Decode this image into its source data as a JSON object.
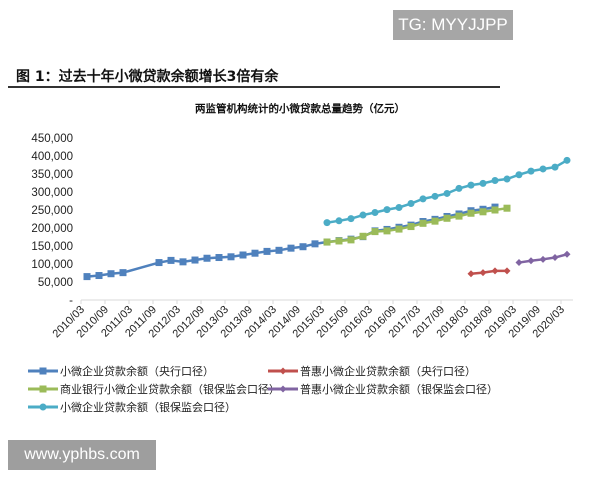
{
  "watermark": "TG: MYYJJPP",
  "figure_title": "图 1：过去十年小微贷款余额增长3倍有余",
  "site_watermark": "www.yphbs.com",
  "chart_data": {
    "type": "line",
    "title": "两监管机构统计的小微贷款总量趋势（亿元）",
    "xlabel": "",
    "ylabel": "",
    "ylim": [
      0,
      450000
    ],
    "yticks": [
      "-",
      "50,000",
      "100,000",
      "150,000",
      "200,000",
      "250,000",
      "300,000",
      "350,000",
      "400,000",
      "450,000"
    ],
    "ytick_values": [
      0,
      50000,
      100000,
      150000,
      200000,
      250000,
      300000,
      350000,
      400000,
      450000
    ],
    "categories": [
      "2010/03",
      "2010/09",
      "2011/03",
      "2011/09",
      "2012/03",
      "2012/09",
      "2013/03",
      "2013/09",
      "2014/03",
      "2014/09",
      "2015/03",
      "2015/09",
      "2016/03",
      "2016/09",
      "2017/03",
      "2017/09",
      "2018/03",
      "2018/09",
      "2019/03",
      "2019/09",
      "2020/03"
    ],
    "grid": false,
    "legend": "bottom",
    "series": [
      {
        "name": "小微企业贷款余额（央行口径）",
        "color": "#4f81bd",
        "marker": "square",
        "x": [
          "2010/03",
          "2010/06",
          "2010/09",
          "2010/12",
          "2011/09",
          "2011/12",
          "2012/03",
          "2012/06",
          "2012/09",
          "2012/12",
          "2013/03",
          "2013/06",
          "2013/09",
          "2013/12",
          "2014/03",
          "2014/06",
          "2014/09",
          "2014/12",
          "2015/03",
          "2015/06",
          "2015/09",
          "2015/12",
          "2016/03",
          "2016/06",
          "2016/09",
          "2016/12",
          "2017/03",
          "2017/06",
          "2017/09",
          "2017/12",
          "2018/03",
          "2018/06",
          "2018/09"
        ],
        "values": [
          65000,
          68000,
          73000,
          76000,
          104000,
          110000,
          106000,
          111000,
          116000,
          118000,
          120000,
          125000,
          130000,
          135000,
          138000,
          144000,
          148000,
          156000,
          161000,
          165000,
          169000,
          176000,
          192000,
          196000,
          202000,
          208000,
          218000,
          224000,
          232000,
          239000,
          248000,
          252000,
          258000
        ]
      },
      {
        "name": "普惠小微企业贷款余额（央行口径）",
        "color": "#c0504d",
        "marker": "diamond",
        "x": [
          "2018/03",
          "2018/06",
          "2018/09",
          "2018/12"
        ],
        "values": [
          73000,
          76000,
          81000,
          81000
        ]
      },
      {
        "name": "商业银行小微企业贷款余额（银保监会口径）",
        "color": "#9bbb59",
        "marker": "square",
        "x": [
          "2015/03",
          "2015/06",
          "2015/09",
          "2015/12",
          "2016/03",
          "2016/06",
          "2016/09",
          "2016/12",
          "2017/03",
          "2017/06",
          "2017/09",
          "2017/12",
          "2018/03",
          "2018/06",
          "2018/09",
          "2018/12"
        ],
        "values": [
          161000,
          164000,
          167000,
          177000,
          190000,
          192000,
          197000,
          204000,
          213000,
          219000,
          227000,
          233000,
          241000,
          245000,
          250000,
          255000
        ]
      },
      {
        "name": "普惠小微企业贷款余额（银保监会口径）",
        "color": "#8064a2",
        "marker": "diamond",
        "x": [
          "2019/03",
          "2019/06",
          "2019/09",
          "2019/12",
          "2020/03"
        ],
        "values": [
          104000,
          109000,
          113000,
          118000,
          127000
        ]
      },
      {
        "name": "小微企业贷款余额（银保监会口径）",
        "color": "#4bacc6",
        "marker": "circle",
        "x": [
          "2015/03",
          "2015/06",
          "2015/09",
          "2015/12",
          "2016/03",
          "2016/06",
          "2016/09",
          "2016/12",
          "2017/03",
          "2017/06",
          "2017/09",
          "2017/12",
          "2018/03",
          "2018/06",
          "2018/09",
          "2018/12",
          "2019/03",
          "2019/06",
          "2019/09",
          "2019/12",
          "2020/03"
        ],
        "values": [
          215000,
          220000,
          226000,
          236000,
          243000,
          251000,
          257000,
          268000,
          281000,
          288000,
          296000,
          310000,
          319000,
          324000,
          332000,
          336000,
          348000,
          358000,
          364000,
          369000,
          388000
        ]
      }
    ]
  }
}
